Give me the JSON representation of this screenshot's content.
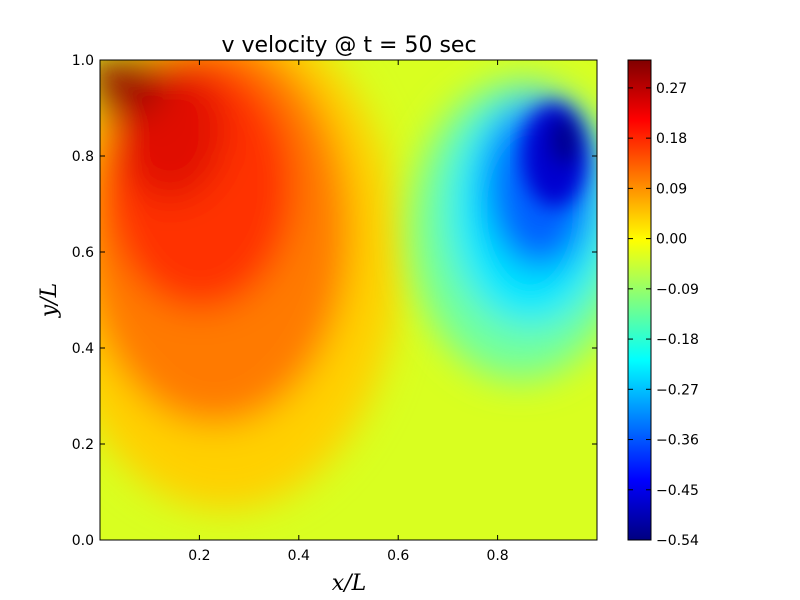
{
  "chart_data": {
    "type": "heatmap",
    "title": "v velocity @ t = 50 sec",
    "xlabel": "x/L",
    "ylabel": "y/L",
    "xlim": [
      0,
      1
    ],
    "ylim": [
      0,
      1
    ],
    "x_ticks": [
      "0.2",
      "0.4",
      "0.6",
      "0.8"
    ],
    "y_ticks": [
      "0.0",
      "0.2",
      "0.4",
      "0.6",
      "0.8",
      "1.0"
    ],
    "colorbar": {
      "range": [
        -0.54,
        0.32
      ],
      "colormap": "jet",
      "ticks": [
        "0.27",
        "0.18",
        "0.09",
        "0.00",
        "−0.09",
        "−0.18",
        "−0.27",
        "−0.36",
        "−0.45",
        "−0.54"
      ]
    },
    "features": [
      {
        "name": "positive-vortex",
        "x": 0.2,
        "y": 0.75,
        "peak_value": 0.3
      },
      {
        "name": "negative-vortex",
        "x": 0.88,
        "y": 0.8,
        "peak_value": -0.54
      }
    ]
  }
}
